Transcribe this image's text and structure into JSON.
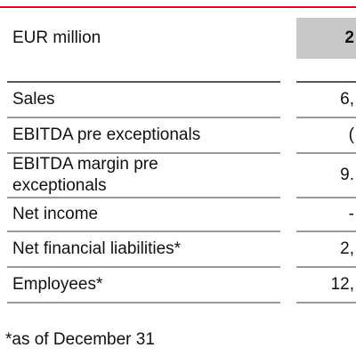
{
  "table": {
    "header": {
      "label": "EUR million",
      "year": "2"
    },
    "rows": [
      [
        "Sales",
        "6,"
      ],
      [
        "EBITDA pre exceptionals",
        "("
      ],
      [
        [
          "EBITDA margin pre",
          "exceptionals"
        ],
        "9."
      ],
      [
        "Net income",
        "-"
      ],
      [
        "Net financial liabilities*",
        "2,"
      ],
      [
        "Employees*",
        "12,"
      ]
    ],
    "footnote": "*as of December 31"
  }
}
